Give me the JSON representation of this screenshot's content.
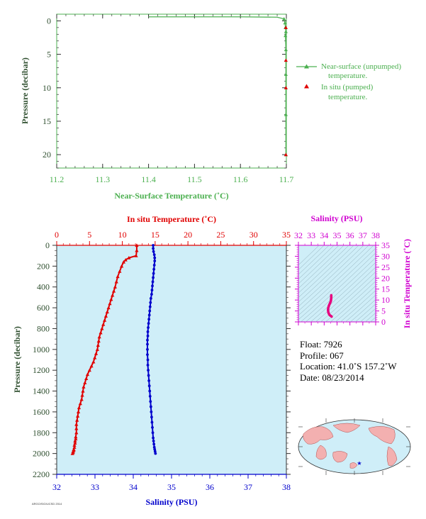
{
  "chart_data": [
    {
      "type": "line",
      "id": "near-surface",
      "xlabel": "Near-Surface Temperature (˚C)",
      "ylabel": "Pressure (decibar)",
      "xlim": [
        11.2,
        11.7
      ],
      "ylim": [
        22,
        -1
      ],
      "xticks": [
        "11.2",
        "11.3",
        "11.4",
        "11.5",
        "11.6",
        "11.7"
      ],
      "yticks": [
        "0",
        "5",
        "10",
        "15",
        "20"
      ],
      "series": [
        {
          "name": "Near-surface (unpumped) temperature.",
          "color": "#4cb050",
          "x": [
            11.4,
            11.6,
            11.68,
            11.695,
            11.697,
            11.698,
            11.699,
            11.698,
            11.699,
            11.699,
            11.699,
            11.699
          ],
          "y": [
            -0.6,
            -0.6,
            -0.55,
            -0.3,
            0.3,
            1.0,
            1.6,
            2.2,
            4.3,
            8.0,
            14.0,
            20.0
          ]
        },
        {
          "name": "In situ (pumped) temperature.",
          "color": "#e00000",
          "x": [
            11.699,
            11.699,
            11.699,
            11.699
          ],
          "y": [
            1.0,
            5.9,
            10.0,
            20.0
          ]
        }
      ]
    },
    {
      "type": "scatter",
      "id": "profile",
      "ylabel": "Pressure (decibar)",
      "ylim": [
        2200,
        0
      ],
      "yticks": [
        "0",
        "200",
        "400",
        "600",
        "800",
        "1000",
        "1200",
        "1400",
        "1600",
        "1800",
        "2000",
        "2200"
      ],
      "top_axis": {
        "label": "In situ Temperature (˚C)",
        "range": [
          0,
          35
        ],
        "ticks": [
          "0",
          "5",
          "10",
          "15",
          "20",
          "25",
          "30",
          "35"
        ],
        "color": "#e00000"
      },
      "bottom_axis": {
        "label": "Salinity (PSU)",
        "range": [
          32,
          38
        ],
        "ticks": [
          "32",
          "33",
          "34",
          "35",
          "36",
          "37",
          "38"
        ],
        "color": "#0000cc"
      },
      "series": [
        {
          "name": "Temperature",
          "color": "#e00000",
          "marker": "triangle",
          "x": [
            12.2,
            12.2,
            12.1,
            11.0,
            10.5,
            10.2,
            9.9,
            9.6,
            9.3,
            9.1,
            8.9,
            8.7,
            8.5,
            8.3,
            8.1,
            7.9,
            7.7,
            7.5,
            7.3,
            7.1,
            6.9,
            6.7,
            6.5,
            6.4,
            6.3,
            6.2,
            6.0,
            5.8,
            5.6,
            5.3,
            5.0,
            4.7,
            4.5,
            4.3,
            4.1,
            4.0,
            3.9,
            3.8,
            3.6,
            3.4,
            3.3,
            3.2,
            3.1,
            3.0,
            3.0,
            3.0,
            2.9,
            2.9,
            2.8,
            2.8,
            2.7,
            2.7,
            2.6,
            2.6,
            2.5,
            2.5,
            2.4
          ],
          "y": [
            0,
            50,
            100,
            120,
            140,
            160,
            200,
            250,
            300,
            350,
            400,
            440,
            480,
            520,
            560,
            600,
            640,
            680,
            720,
            760,
            800,
            840,
            880,
            920,
            960,
            1000,
            1040,
            1080,
            1120,
            1160,
            1200,
            1240,
            1280,
            1320,
            1360,
            1400,
            1440,
            1480,
            1520,
            1560,
            1600,
            1640,
            1680,
            1720,
            1760,
            1800,
            1840,
            1860,
            1880,
            1900,
            1920,
            1940,
            1960,
            1970,
            1980,
            1990,
            2000
          ]
        },
        {
          "name": "Salinity",
          "color": "#0000cc",
          "marker": "circle",
          "x": [
            34.52,
            34.52,
            34.53,
            34.55,
            34.56,
            34.56,
            34.55,
            34.54,
            34.53,
            34.52,
            34.51,
            34.5,
            34.49,
            34.48,
            34.46,
            34.45,
            34.44,
            34.43,
            34.42,
            34.41,
            34.4,
            34.39,
            34.38,
            34.38,
            34.37,
            34.37,
            34.37,
            34.37,
            34.38,
            34.38,
            34.39,
            34.4,
            34.41,
            34.42,
            34.43,
            34.44,
            34.45,
            34.46,
            34.47,
            34.48,
            34.49,
            34.5,
            34.51,
            34.52,
            34.53,
            34.54,
            34.55,
            34.56,
            34.57,
            34.58
          ],
          "y": [
            0,
            30,
            60,
            90,
            120,
            150,
            190,
            230,
            270,
            310,
            350,
            390,
            430,
            470,
            510,
            550,
            590,
            630,
            670,
            710,
            750,
            790,
            830,
            870,
            910,
            950,
            1000,
            1050,
            1100,
            1150,
            1200,
            1250,
            1300,
            1350,
            1400,
            1450,
            1500,
            1550,
            1600,
            1650,
            1700,
            1750,
            1800,
            1850,
            1880,
            1910,
            1940,
            1960,
            1980,
            2000
          ]
        }
      ]
    },
    {
      "type": "line",
      "id": "ts-diagram",
      "top_axis": {
        "label": "Salinity (PSU)",
        "range": [
          32,
          38
        ],
        "ticks": [
          "32",
          "33",
          "34",
          "35",
          "36",
          "37",
          "38"
        ]
      },
      "right_axis": {
        "label": "In situ Temperature (˚C)",
        "range": [
          0,
          35
        ],
        "ticks": [
          "0",
          "5",
          "10",
          "15",
          "20",
          "25",
          "30",
          "35"
        ]
      },
      "color": "#d000d0",
      "series": [
        {
          "name": "T-S",
          "color": "#e6007e",
          "x": [
            34.55,
            34.55,
            34.52,
            34.45,
            34.38,
            34.32,
            34.3,
            34.32,
            34.36,
            34.4,
            34.45,
            34.5,
            34.55,
            34.58
          ],
          "y": [
            12.2,
            11.0,
            9.5,
            8.5,
            7.6,
            6.5,
            5.5,
            4.5,
            3.8,
            3.3,
            3.0,
            2.8,
            2.6,
            2.4
          ]
        }
      ]
    }
  ],
  "info": {
    "float": "Float:  7926",
    "profile": "Profile:  067",
    "location": "Location:  41.0˚S  157.2˚W",
    "date": "Date:  08/23/2014"
  },
  "footer": "ARGO/SIO/UCSD 2014",
  "colors": {
    "axis_dark": "#333333",
    "green": "#4cb050",
    "red": "#e00000",
    "blue": "#0000cc",
    "magenta": "#d000d0",
    "panel_fill": "#cfeef8"
  }
}
